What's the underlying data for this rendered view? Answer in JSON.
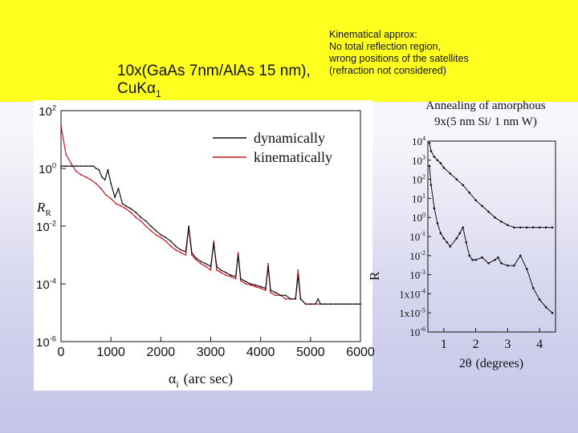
{
  "slide": {
    "title_line1": "10x(GaAs 7nm/AlAs 15 nm),",
    "title_line2_prefix": "CuK",
    "title_line2_alpha": "α",
    "title_line2_sub": "1",
    "note_lines": [
      "Kinematical approx:",
      "No total reflection region,",
      "wrong positions of the satellites",
      "(refraction not considered)"
    ],
    "anneal_line1": "Annealing of amorphous",
    "anneal_line2": "9x(5 nm Si/ 1 nm W)",
    "colors": {
      "band": "#ffff1f",
      "dynamic": "#111111",
      "kinematic": "#c8141e"
    }
  },
  "chart_data": [
    {
      "type": "line",
      "xlabel_symbol": "α",
      "xlabel_sub": "i",
      "xlabel_unit": "(arc sec)",
      "ylabel_symbol": "R",
      "ylabel_sub": "R",
      "xlim": [
        0,
        6000
      ],
      "ylim_log10": [
        -6,
        2
      ],
      "log_y": true,
      "x_ticks": [
        "0",
        "1000",
        "2000",
        "3000",
        "4000",
        "5000",
        "6000"
      ],
      "y_ticks": [
        {
          "base": "10",
          "exp": "2"
        },
        {
          "base": "10",
          "exp": "0"
        },
        {
          "base": "10",
          "exp": "-2"
        },
        {
          "base": "10",
          "exp": "-4"
        },
        {
          "base": "10",
          "exp": "-6"
        }
      ],
      "legend_position": "top-right",
      "series": [
        {
          "name": "dynamically",
          "color": "#111111",
          "x": [
            0,
            100,
            200,
            300,
            400,
            500,
            600,
            650,
            700,
            760,
            820,
            880,
            940,
            1000,
            1080,
            1150,
            1230,
            1300,
            1400,
            1500,
            1600,
            1700,
            1800,
            1900,
            2000,
            2100,
            2200,
            2300,
            2400,
            2500,
            2560,
            2620,
            2700,
            2800,
            2900,
            3000,
            3060,
            3120,
            3200,
            3300,
            3400,
            3500,
            3550,
            3600,
            3700,
            3800,
            3900,
            4000,
            4100,
            4150,
            4200,
            4300,
            4400,
            4500,
            4600,
            4700,
            4750,
            4800,
            4900,
            5000,
            5100,
            5150,
            5200,
            5250,
            5300,
            5400,
            5500,
            5600,
            5700,
            5800,
            5900,
            6000
          ],
          "y": [
            1.2,
            1.2,
            1.2,
            1.2,
            1.2,
            1.2,
            1.2,
            1.2,
            1.0,
            0.9,
            0.5,
            0.4,
            0.9,
            0.3,
            0.1,
            0.2,
            0.06,
            0.05,
            0.04,
            0.03,
            0.02,
            0.015,
            0.01,
            0.007,
            0.005,
            0.004,
            0.003,
            0.002,
            0.0015,
            0.0013,
            0.01,
            0.0012,
            0.0008,
            0.0006,
            0.0005,
            0.0004,
            0.0025,
            0.0004,
            0.0003,
            0.00025,
            0.0002,
            0.00018,
            0.001,
            0.00015,
            0.00012,
            0.0001,
            9e-05,
            8e-05,
            7e-05,
            0.0004,
            6e-05,
            5e-05,
            4e-05,
            4e-05,
            3e-05,
            3e-05,
            0.0002,
            3e-05,
            2e-05,
            2e-05,
            2e-05,
            3e-05,
            2e-05,
            2e-05,
            2e-05,
            2e-05,
            2e-05,
            2e-05,
            2e-05,
            2e-05,
            2e-05,
            2e-05
          ]
        },
        {
          "name": "kinematically",
          "color": "#c8141e",
          "x": [
            0,
            100,
            200,
            300,
            400,
            500,
            600,
            700,
            800,
            900,
            1000,
            1100,
            1200,
            1300,
            1400,
            1500,
            1600,
            1700,
            1800,
            1900,
            2000,
            2100,
            2200,
            2300,
            2400,
            2500,
            2560,
            2620,
            2700,
            2800,
            2900,
            3000,
            3060,
            3120,
            3200,
            3300,
            3400,
            3500,
            3550,
            3600,
            3700,
            3800,
            3900,
            4000,
            4100,
            4150,
            4200,
            4300,
            4400,
            4500,
            4600,
            4700,
            4750,
            4800,
            4900,
            5000,
            5100,
            5200,
            5300,
            5400,
            5500,
            5600,
            5700,
            5800,
            5900,
            6000
          ],
          "y": [
            30,
            3,
            1.5,
            0.8,
            0.6,
            0.5,
            0.4,
            0.3,
            0.2,
            0.12,
            0.09,
            0.06,
            0.05,
            0.04,
            0.03,
            0.02,
            0.015,
            0.01,
            0.007,
            0.005,
            0.004,
            0.003,
            0.002,
            0.0015,
            0.0012,
            0.001,
            0.009,
            0.001,
            0.0007,
            0.0005,
            0.0004,
            0.0003,
            0.003,
            0.0003,
            0.00025,
            0.0002,
            0.00018,
            0.00015,
            0.0012,
            0.00013,
            0.0001,
            9e-05,
            8e-05,
            7e-05,
            6e-05,
            0.0005,
            5e-05,
            4e-05,
            4e-05,
            3e-05,
            3e-05,
            3e-05,
            0.0003,
            3e-05,
            2e-05,
            2e-05,
            2e-05,
            2e-05,
            2e-05,
            2e-05,
            2e-05,
            2e-05,
            2e-05,
            2e-05,
            2e-05,
            2e-05
          ]
        }
      ]
    },
    {
      "type": "scatter",
      "xlabel_prefix": "2",
      "xlabel_symbol": "θ",
      "xlabel_unit": "(degrees)",
      "ylabel_symbol": "R",
      "xlim": [
        0.5,
        4.5
      ],
      "ylim_log10": [
        -6,
        4
      ],
      "log_y": true,
      "x_ticks": [
        "1",
        "2",
        "3",
        "4"
      ],
      "y_ticks": [
        {
          "base": "10",
          "exp": "4"
        },
        {
          "base": "10",
          "exp": "3"
        },
        {
          "base": "10",
          "exp": "2"
        },
        {
          "base": "10",
          "exp": "1"
        },
        {
          "base": "10",
          "exp": "0"
        },
        {
          "base": "10",
          "exp": "-1"
        },
        {
          "base": "10",
          "exp": "-2"
        },
        {
          "base": "10",
          "exp": "-3"
        },
        {
          "base": "1x10",
          "exp": "-4"
        },
        {
          "base": "1x10",
          "exp": "-5"
        },
        {
          "base": "10",
          "exp": "-6"
        }
      ],
      "series": [
        {
          "label": "upper",
          "x": [
            0.55,
            0.6,
            0.7,
            0.8,
            0.9,
            1.0,
            1.2,
            1.4,
            1.6,
            1.8,
            2.0,
            2.2,
            2.4,
            2.6,
            2.8,
            3.0,
            3.2,
            3.4,
            3.6,
            3.8,
            4.0,
            4.2,
            4.4
          ],
          "y": [
            8000,
            3000,
            1500,
            1000,
            700,
            400,
            200,
            100,
            50,
            20,
            8,
            4,
            2,
            1,
            0.6,
            0.4,
            0.3,
            0.3,
            0.3,
            0.3,
            0.3,
            0.3,
            0.3
          ]
        },
        {
          "label": "lower",
          "x": [
            0.55,
            0.6,
            0.7,
            0.8,
            0.9,
            1.0,
            1.1,
            1.2,
            1.4,
            1.5,
            1.6,
            1.7,
            1.8,
            1.9,
            2.0,
            2.2,
            2.4,
            2.6,
            2.7,
            2.8,
            3.0,
            3.2,
            3.4,
            3.6,
            3.8,
            4.0,
            4.2,
            4.4
          ],
          "y": [
            500,
            50,
            3,
            0.5,
            0.15,
            0.08,
            0.05,
            0.03,
            0.08,
            0.15,
            0.3,
            0.05,
            0.01,
            0.006,
            0.006,
            0.008,
            0.004,
            0.006,
            0.008,
            0.004,
            0.003,
            0.003,
            0.01,
            0.002,
            0.0002,
            5e-05,
            2e-05,
            1e-05
          ]
        }
      ]
    }
  ]
}
